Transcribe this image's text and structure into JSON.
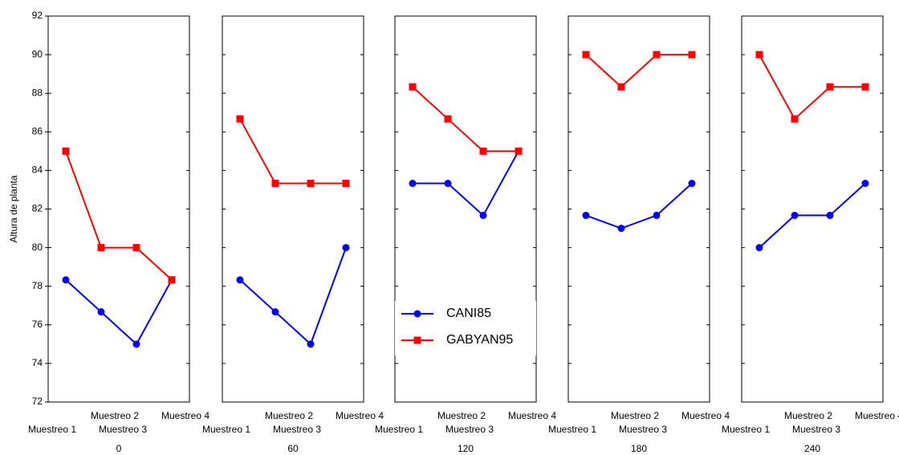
{
  "chart_data": [
    {
      "type": "line",
      "ylabel": "Altura de planta",
      "xlabel": "0",
      "categories": [
        "Muestreo 1",
        "Muestreo 2",
        "Muestreo 3",
        "Muestreo 4"
      ],
      "series": [
        {
          "color": "#0000ff",
          "marker": "circle",
          "values": [
            78.33,
            76.67,
            75,
            78.33
          ]
        },
        {
          "color": "#ff0000",
          "marker": "square",
          "values": [
            85,
            80,
            80,
            78.33
          ]
        }
      ],
      "ylim": [
        72,
        92
      ],
      "yticks": [
        72,
        74,
        76,
        78,
        80,
        82,
        84,
        86,
        88,
        90,
        92
      ]
    },
    {
      "type": "line",
      "xlabel": "60",
      "categories": [
        "Muestreo 1",
        "Muestreo 2",
        "Muestreo 3",
        "Muestreo 4"
      ],
      "series": [
        {
          "color": "#0000ff",
          "marker": "circle",
          "values": [
            78.33,
            76.67,
            75,
            80
          ]
        },
        {
          "color": "#ff0000",
          "marker": "square",
          "values": [
            86.67,
            83.33,
            83.33,
            83.33
          ]
        }
      ],
      "ylim": [
        72,
        92
      ],
      "yticks": [
        72,
        74,
        76,
        78,
        80,
        82,
        84,
        86,
        88,
        90,
        92
      ]
    },
    {
      "type": "line",
      "xlabel": "120",
      "categories": [
        "Muestreo 1",
        "Muestreo 2",
        "Muestreo 3",
        "Muestreo 4"
      ],
      "series": [
        {
          "name": "CANI85",
          "color": "#0000ff",
          "marker": "circle",
          "values": [
            83.33,
            83.33,
            81.67,
            85
          ]
        },
        {
          "name": "GABYAN95",
          "color": "#ff0000",
          "marker": "square",
          "values": [
            88.33,
            86.67,
            85,
            85
          ]
        }
      ],
      "ylim": [
        72,
        92
      ],
      "yticks": [
        72,
        74,
        76,
        78,
        80,
        82,
        84,
        86,
        88,
        90,
        92
      ]
    },
    {
      "type": "line",
      "xlabel": "180",
      "categories": [
        "Muestreo 1",
        "Muestreo 2",
        "Muestreo 3",
        "Muestreo 4"
      ],
      "series": [
        {
          "color": "#0000ff",
          "marker": "circle",
          "values": [
            81.67,
            81,
            81.67,
            83.33
          ]
        },
        {
          "color": "#ff0000",
          "marker": "square",
          "values": [
            90,
            88.33,
            90,
            90
          ]
        }
      ],
      "ylim": [
        72,
        92
      ],
      "yticks": [
        72,
        74,
        76,
        78,
        80,
        82,
        84,
        86,
        88,
        90,
        92
      ]
    },
    {
      "type": "line",
      "xlabel": "240",
      "categories": [
        "Muestreo 1",
        "Muestreo 2",
        "Muestreo 3",
        "Muestreo 4"
      ],
      "series": [
        {
          "color": "#0000ff",
          "marker": "circle",
          "values": [
            80,
            81.67,
            81.67,
            83.33
          ]
        },
        {
          "color": "#ff0000",
          "marker": "square",
          "values": [
            90,
            86.67,
            88.33,
            88.33
          ]
        }
      ],
      "ylim": [
        72,
        92
      ],
      "yticks": [
        72,
        74,
        76,
        78,
        80,
        82,
        84,
        86,
        88,
        90,
        92
      ]
    }
  ]
}
